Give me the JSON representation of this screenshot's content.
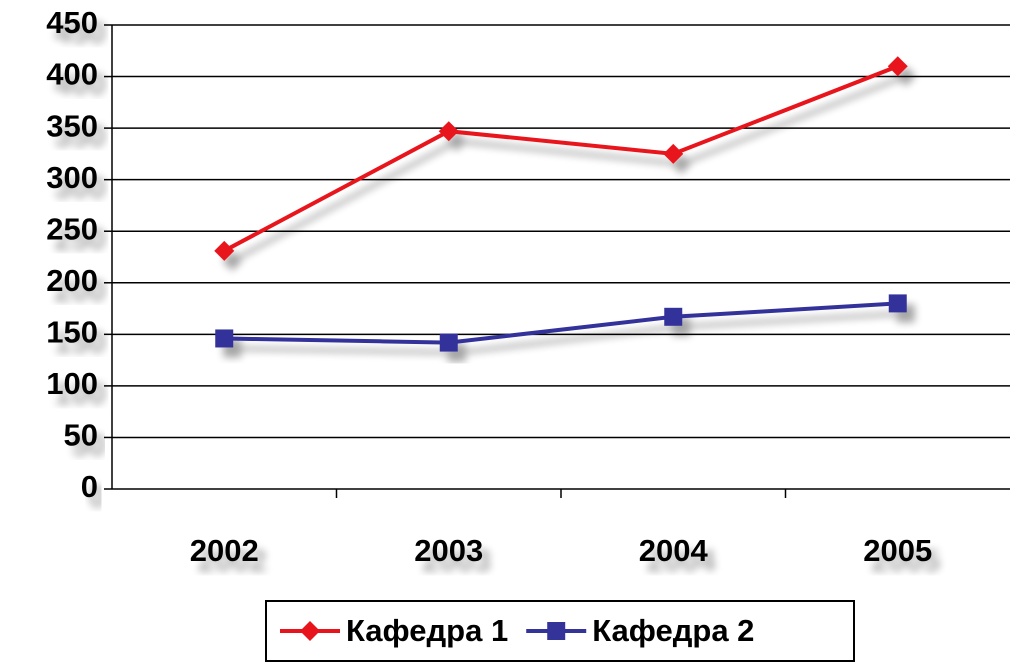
{
  "chart_data": {
    "type": "line",
    "categories": [
      "2002",
      "2003",
      "2004",
      "2005"
    ],
    "series": [
      {
        "name": "Кафедра 1",
        "color": "#e8141b",
        "marker": "diamond",
        "values": [
          231,
          347,
          325,
          410
        ]
      },
      {
        "name": "Кафедра 2",
        "color": "#33339a",
        "marker": "square",
        "values": [
          146,
          142,
          167,
          180
        ]
      }
    ],
    "ylim": [
      0,
      450
    ],
    "yticks": [
      0,
      50,
      100,
      150,
      200,
      250,
      300,
      350,
      400,
      450
    ],
    "grid": true,
    "legend": "bottom"
  }
}
